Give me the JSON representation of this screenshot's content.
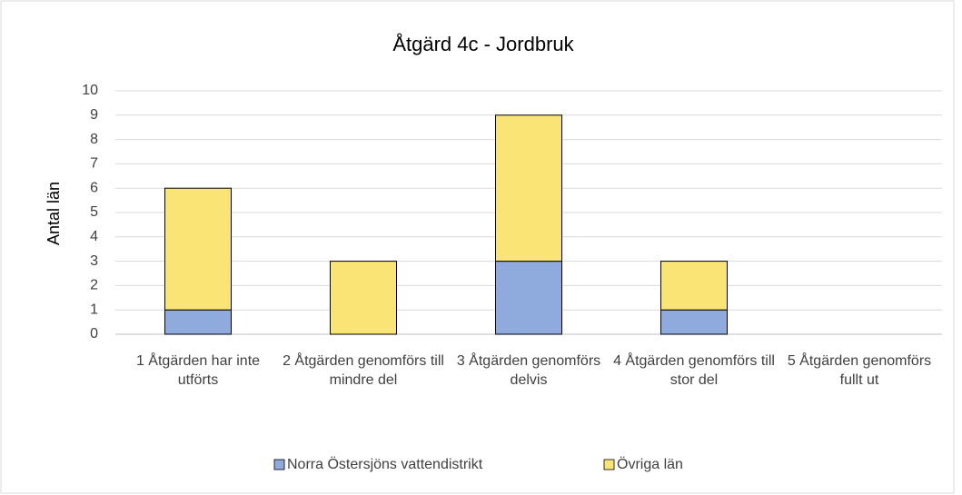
{
  "chart_data": {
    "type": "stacked_bar",
    "title": "Åtgärd 4c - Jordbruk",
    "y_label": "Antal län",
    "categories": [
      "1 Åtgärden har inte utförts",
      "2 Åtgärden genomförs till mindre del",
      "3 Åtgärden genomförs delvis",
      "4 Åtgärden genomförs till stor del",
      "5 Åtgärden genomförs fullt ut"
    ],
    "series": [
      {
        "name": "Norra Östersjöns vattendistrikt",
        "color": "#8faadc",
        "values": [
          1,
          0,
          3,
          1,
          0
        ]
      },
      {
        "name": "Övriga län",
        "color": "#fbe476",
        "values": [
          5,
          3,
          6,
          2,
          0
        ]
      }
    ],
    "ylim": [
      0,
      10
    ],
    "yticks": [
      0,
      1,
      2,
      3,
      4,
      5,
      6,
      7,
      8,
      9,
      10
    ],
    "grid": true,
    "legend": "bottom"
  }
}
